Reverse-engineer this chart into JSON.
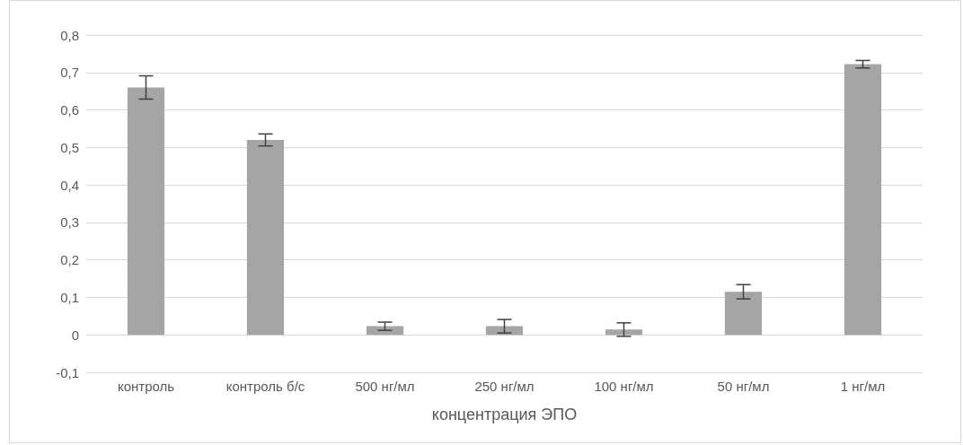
{
  "chart_data": {
    "type": "bar",
    "xlabel": "концентрация ЭПО",
    "categories": [
      "контроль",
      "контроль б/с",
      "500 нг/мл",
      "250 нг/мл",
      "100 нг/мл",
      "50 нг/мл",
      "1 нг/мл"
    ],
    "values": [
      0.66,
      0.52,
      0.023,
      0.023,
      0.014,
      0.115,
      0.722
    ],
    "errors": [
      0.031,
      0.016,
      0.011,
      0.018,
      0.018,
      0.019,
      0.01
    ],
    "color": "#a5a5a5",
    "ylim": [
      -0.1,
      0.8
    ],
    "yticks": [
      {
        "value": -0.1,
        "label": "-0,1"
      },
      0,
      {
        "value": 0.1,
        "label": "0,1"
      },
      {
        "value": 0.2,
        "label": "0,2"
      },
      {
        "value": 0.3,
        "label": "0,3"
      },
      {
        "value": 0.4,
        "label": "0,4"
      },
      {
        "value": 0.5,
        "label": "0,5"
      },
      {
        "value": 0.6,
        "label": "0,6"
      },
      {
        "value": 0.7,
        "label": "0,7"
      },
      {
        "value": 0.8,
        "label": "0,8"
      }
    ],
    "grid": "y"
  }
}
